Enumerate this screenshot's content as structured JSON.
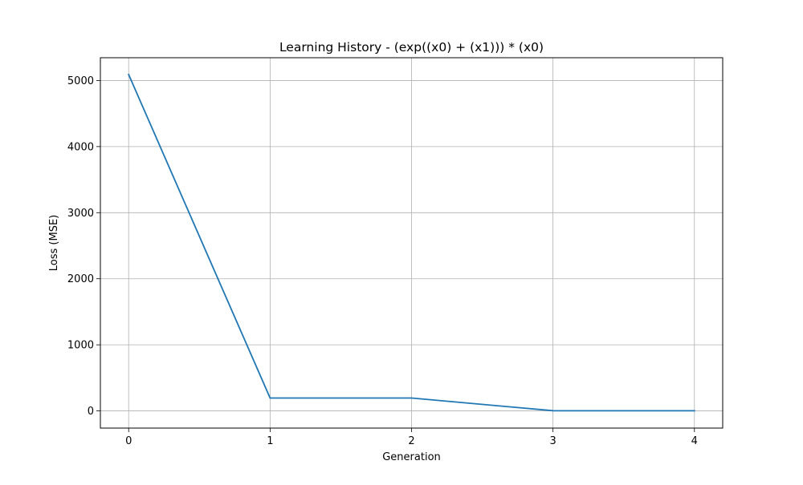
{
  "chart_data": {
    "type": "line",
    "title": "Learning History - (exp((x0) + (x1))) * (x0)",
    "xlabel": "Generation",
    "ylabel": "Loss (MSE)",
    "x": [
      0,
      1,
      2,
      3,
      4
    ],
    "series": [
      {
        "values": [
          5090,
          195,
          195,
          3,
          2
        ],
        "color": "#1f77b4"
      }
    ],
    "xlim": [
      -0.2,
      4.2
    ],
    "ylim": [
      -260,
      5345
    ],
    "xticks": [
      0,
      1,
      2,
      3,
      4
    ],
    "xtick_labels": [
      "0",
      "1",
      "2",
      "3",
      "4"
    ],
    "yticks": [
      0,
      1000,
      2000,
      3000,
      4000,
      5000
    ],
    "ytick_labels": [
      "0",
      "1000",
      "2000",
      "3000",
      "4000",
      "5000"
    ],
    "grid": true,
    "legend": false
  }
}
